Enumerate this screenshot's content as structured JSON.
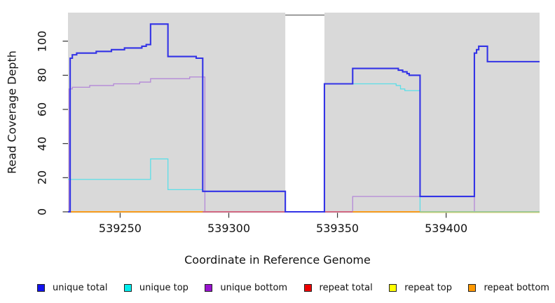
{
  "chart_data": {
    "type": "line",
    "subtype": "step-coverage",
    "title": "",
    "xlabel": "Coordinate in Reference Genome",
    "ylabel": "Read Coverage Depth",
    "xlim": [
      539226,
      539443
    ],
    "ylim": [
      0,
      117
    ],
    "x_ticks": [
      539250,
      539300,
      539350,
      539400
    ],
    "y_ticks": [
      0,
      20,
      40,
      60,
      80,
      100
    ],
    "grid": false,
    "panel_bg": "#d9d9d9",
    "gap_region": {
      "from": 539326,
      "to": 539344,
      "color": "#ffffff",
      "top_border": "#7a7a7a"
    },
    "series": [
      {
        "name": "repeat bottom",
        "legend_color": "#ff9900",
        "line_color": "#ff9900",
        "width": 1.5,
        "steps": [
          [
            539226,
            0
          ]
        ]
      },
      {
        "name": "repeat top",
        "legend_color": "#ffff00",
        "line_color": "#efe2a0",
        "width": 1.2,
        "steps": [
          [
            539226,
            0
          ]
        ]
      },
      {
        "name": "repeat total",
        "legend_color": "#ee0000",
        "line_color": "#d05880",
        "width": 1.2,
        "steps": [
          [
            539226,
            0
          ]
        ]
      },
      {
        "name": "unique bottom",
        "legend_color": "#9913cf",
        "line_color": "#b488d8",
        "width": 1.3,
        "steps": [
          [
            539226,
            0
          ],
          [
            539226.5,
            72
          ],
          [
            539228,
            73
          ],
          [
            539236,
            74
          ],
          [
            539247,
            75
          ],
          [
            539259,
            76
          ],
          [
            539264,
            78
          ],
          [
            539282,
            79
          ],
          [
            539289,
            0
          ],
          [
            539357,
            9
          ],
          [
            539413,
            0
          ]
        ]
      },
      {
        "name": "unique top",
        "legend_color": "#00eeee",
        "line_color": "#5cdee8",
        "width": 1.3,
        "steps": [
          [
            539226,
            19
          ],
          [
            539264,
            31
          ],
          [
            539272,
            13
          ],
          [
            539288,
            12
          ],
          [
            539326,
            0
          ],
          [
            539344,
            75
          ],
          [
            539377,
            74
          ],
          [
            539379,
            72
          ],
          [
            539381,
            71
          ],
          [
            539388,
            0
          ]
        ]
      },
      {
        "name": "unique total",
        "legend_color": "#1313ee",
        "line_color": "#3333e6",
        "width": 2.1,
        "steps": [
          [
            539226,
            0
          ],
          [
            539227,
            90
          ],
          [
            539228,
            92
          ],
          [
            539230,
            93
          ],
          [
            539239,
            94
          ],
          [
            539246,
            95
          ],
          [
            539252,
            96
          ],
          [
            539260,
            97
          ],
          [
            539262,
            98
          ],
          [
            539264,
            110
          ],
          [
            539272,
            91
          ],
          [
            539285,
            90
          ],
          [
            539288,
            12
          ],
          [
            539326,
            0
          ],
          [
            539344,
            75
          ],
          [
            539357,
            84
          ],
          [
            539378,
            83
          ],
          [
            539380,
            82
          ],
          [
            539382,
            81
          ],
          [
            539383,
            80
          ],
          [
            539388,
            9
          ],
          [
            539413,
            93
          ],
          [
            539414,
            95
          ],
          [
            539415,
            97
          ],
          [
            539419,
            88
          ]
        ]
      }
    ],
    "baseline_segments": [
      {
        "from": 539226,
        "to": 539288,
        "color": "#ff9900",
        "width": 1.6,
        "dy": 0
      },
      {
        "from": 539288,
        "to": 539326,
        "color": "#d05880",
        "width": 1.4,
        "dy": 0
      },
      {
        "from": 539344,
        "to": 539357,
        "color": "#d05880",
        "width": 1.4,
        "dy": 0
      },
      {
        "from": 539357,
        "to": 539388,
        "color": "#ff9900",
        "width": 1.6,
        "dy": 0
      },
      {
        "from": 539388,
        "to": 539443,
        "color": "#efe2a0",
        "width": 1.3,
        "dy": 1.4
      },
      {
        "from": 539388,
        "to": 539443,
        "color": "#92ce92",
        "width": 1.5,
        "dy": 0
      }
    ],
    "legend_position": "bottom"
  },
  "axes": {
    "x_label": "Coordinate in Reference Genome",
    "y_label": "Read Coverage Depth",
    "x_tick_labels": [
      "539250",
      "539300",
      "539350",
      "539400"
    ],
    "y_tick_labels": [
      "0",
      "20",
      "40",
      "60",
      "80",
      "100"
    ]
  },
  "legend": {
    "items": [
      {
        "label": "unique total",
        "color": "#1313ee"
      },
      {
        "label": "unique top",
        "color": "#00eeee"
      },
      {
        "label": "unique bottom",
        "color": "#9913cf"
      },
      {
        "label": "repeat total",
        "color": "#ee0000"
      },
      {
        "label": "repeat top",
        "color": "#ffff00"
      },
      {
        "label": "repeat bottom",
        "color": "#ff9900"
      }
    ]
  }
}
